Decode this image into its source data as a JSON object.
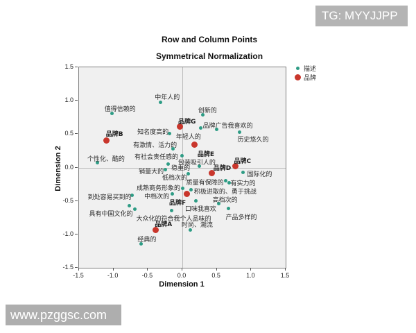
{
  "watermarks": {
    "top": "TG: MYYJJPP",
    "bottom": "www.pzggsc.com"
  },
  "chart_data": {
    "type": "scatter",
    "title": "Row and Column Points",
    "subtitle": "Symmetrical Normalization",
    "xlabel": "Dimension 1",
    "ylabel": "Dimension 2",
    "xlim": [
      -1.5,
      1.5
    ],
    "ylim": [
      -1.5,
      1.5
    ],
    "xticks": [
      -1.5,
      -1.0,
      -0.5,
      0.0,
      0.5,
      1.0,
      1.5
    ],
    "yticks": [
      -1.5,
      -1.0,
      -0.5,
      0.0,
      0.5,
      1.0,
      1.5
    ],
    "grid": false,
    "reference_lines": {
      "x": 0.0,
      "y": 0.0
    },
    "legend_position": "top-right-outside",
    "legend": [
      {
        "label": "描述",
        "color": "#2e9c85",
        "marker_size": 5
      },
      {
        "label": "品牌",
        "color": "#c9362c",
        "marker_size": 9
      }
    ],
    "series": [
      {
        "name": "描述",
        "color": "#2e9c85",
        "marker_size": 5,
        "points": [
          {
            "label": "中年人的",
            "x": -0.32,
            "y": 0.98,
            "dx": -8,
            "dy": -14
          },
          {
            "label": "值得信赖的",
            "x": -1.02,
            "y": 0.81,
            "dx": -11,
            "dy": -13
          },
          {
            "label": "创新的",
            "x": 0.3,
            "y": 0.79,
            "dx": -7,
            "dy": -13
          },
          {
            "label": "品牌广告我喜欢的",
            "x": 0.5,
            "y": 0.57,
            "dx": -20,
            "dy": -13
          },
          {
            "label": "年轻人的",
            "x": 0.27,
            "y": 0.59,
            "dx": -36,
            "dy": 5
          },
          {
            "label": "历史悠久的",
            "x": 0.83,
            "y": 0.53,
            "dx": -3,
            "dy": 4
          },
          {
            "label": "知名度高的",
            "x": -0.19,
            "y": 0.51,
            "dx": -46,
            "dy": -9
          },
          {
            "label": "有激情、活力的",
            "x": -0.14,
            "y": 0.28,
            "dx": -57,
            "dy": -13
          },
          {
            "label": "有社会责任感的",
            "x": -0.01,
            "y": 0.18,
            "dx": -68,
            "dy": -5
          },
          {
            "label": "个性化、酷的",
            "x": -1.23,
            "y": 0.07,
            "dx": -15,
            "dy": -13
          },
          {
            "label": "稳重的",
            "x": -0.21,
            "y": 0.05,
            "dx": 5,
            "dy": -2
          },
          {
            "label": "包装吸引人的",
            "x": 0.25,
            "y": 0.02,
            "dx": -31,
            "dy": -13
          },
          {
            "label": "销量大的",
            "x": -0.25,
            "y": -0.03,
            "dx": -38,
            "dy": -4
          },
          {
            "label": "低档次的",
            "x": 0.09,
            "y": -0.09,
            "dx": -38,
            "dy": -1
          },
          {
            "label": "国际化的",
            "x": 0.88,
            "y": -0.07,
            "dx": 6,
            "dy": -4
          },
          {
            "label": "质量有保障的",
            "x": 0.63,
            "y": -0.2,
            "dx": -57,
            "dy": -5
          },
          {
            "label": "有实力的",
            "x": 0.68,
            "y": -0.23,
            "dx": 2,
            "dy": -7
          },
          {
            "label": "成熟商务形象的",
            "x": 0.0,
            "y": -0.31,
            "dx": -66,
            "dy": -7
          },
          {
            "label": "积极进取的、勇于挑战",
            "x": 0.13,
            "y": -0.33,
            "dx": 4,
            "dy": -4
          },
          {
            "label": "中档次的",
            "x": -0.15,
            "y": -0.39,
            "dx": -40,
            "dy": -3
          },
          {
            "label": "到处容易买到的",
            "x": -0.73,
            "y": -0.42,
            "dx": -64,
            "dy": -5
          },
          {
            "label": "口味我喜欢",
            "x": 0.2,
            "y": -0.5,
            "dx": -16,
            "dy": 4
          },
          {
            "label": "高档次的",
            "x": 0.53,
            "y": -0.54,
            "dx": -9,
            "dy": -13
          },
          {
            "label": "具有中国文化的",
            "x": -0.77,
            "y": -0.57,
            "dx": -58,
            "dy": 5
          },
          {
            "label": "大众化的符合我个人品味的",
            "x": -0.69,
            "y": -0.62,
            "dx": 2,
            "dy": 7
          },
          {
            "label": "",
            "x": -0.16,
            "y": -0.64,
            "dx": 0,
            "dy": 0
          },
          {
            "label": "产品多样的",
            "x": 0.67,
            "y": -0.61,
            "dx": -4,
            "dy": 6
          },
          {
            "label": "时尚、潮流",
            "x": 0.12,
            "y": -0.93,
            "dx": -13,
            "dy": -14
          },
          {
            "label": "经典的",
            "x": -0.6,
            "y": -1.14,
            "dx": -5,
            "dy": -13
          }
        ]
      },
      {
        "name": "品牌",
        "color": "#c9362c",
        "marker_size": 9,
        "points": [
          {
            "label": "品牌A",
            "x": -0.39,
            "y": -0.93,
            "dx": -1,
            "dy": -15
          },
          {
            "label": "品牌B",
            "x": -1.1,
            "y": 0.41,
            "dx": -1,
            "dy": -16
          },
          {
            "label": "品牌C",
            "x": 0.77,
            "y": 0.02,
            "dx": -2,
            "dy": -15
          },
          {
            "label": "品牌D",
            "x": 0.43,
            "y": -0.08,
            "dx": 2,
            "dy": -14
          },
          {
            "label": "品牌E",
            "x": 0.18,
            "y": 0.34,
            "dx": 4,
            "dy": 6
          },
          {
            "label": "品牌F",
            "x": 0.07,
            "y": -0.39,
            "dx": -26,
            "dy": 6
          },
          {
            "label": "品牌G",
            "x": -0.04,
            "y": 0.61,
            "dx": -2,
            "dy": -15
          }
        ]
      }
    ]
  }
}
